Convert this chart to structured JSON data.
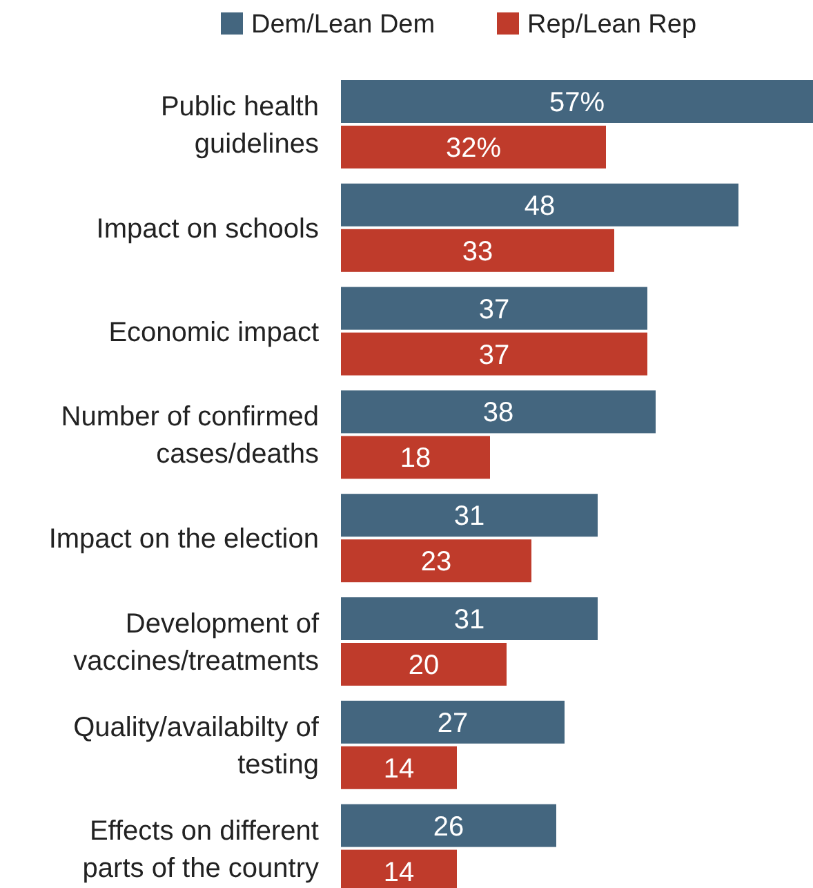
{
  "chart_data": {
    "type": "bar",
    "orientation": "horizontal",
    "legend": "top",
    "categories": [
      "Public health guidelines",
      "Impact on schools",
      "Economic impact",
      "Number of confirmed cases/deaths",
      "Impact on the election",
      "Development of vaccines/treatments",
      "Quality/availabilty of testing",
      "Effects on different parts of the country"
    ],
    "series": [
      {
        "name": "Dem/Lean Dem",
        "color": "#44667f",
        "values": [
          57,
          48,
          37,
          38,
          31,
          31,
          27,
          26
        ],
        "value_labels": [
          "57%",
          "48",
          "37",
          "38",
          "31",
          "31",
          "27",
          "26"
        ]
      },
      {
        "name": "Rep/Lean Rep",
        "color": "#bf3b2b",
        "values": [
          32,
          33,
          37,
          18,
          23,
          20,
          14,
          14
        ],
        "value_labels": [
          "32%",
          "33",
          "37",
          "18",
          "23",
          "20",
          "14",
          "14"
        ]
      }
    ]
  }
}
